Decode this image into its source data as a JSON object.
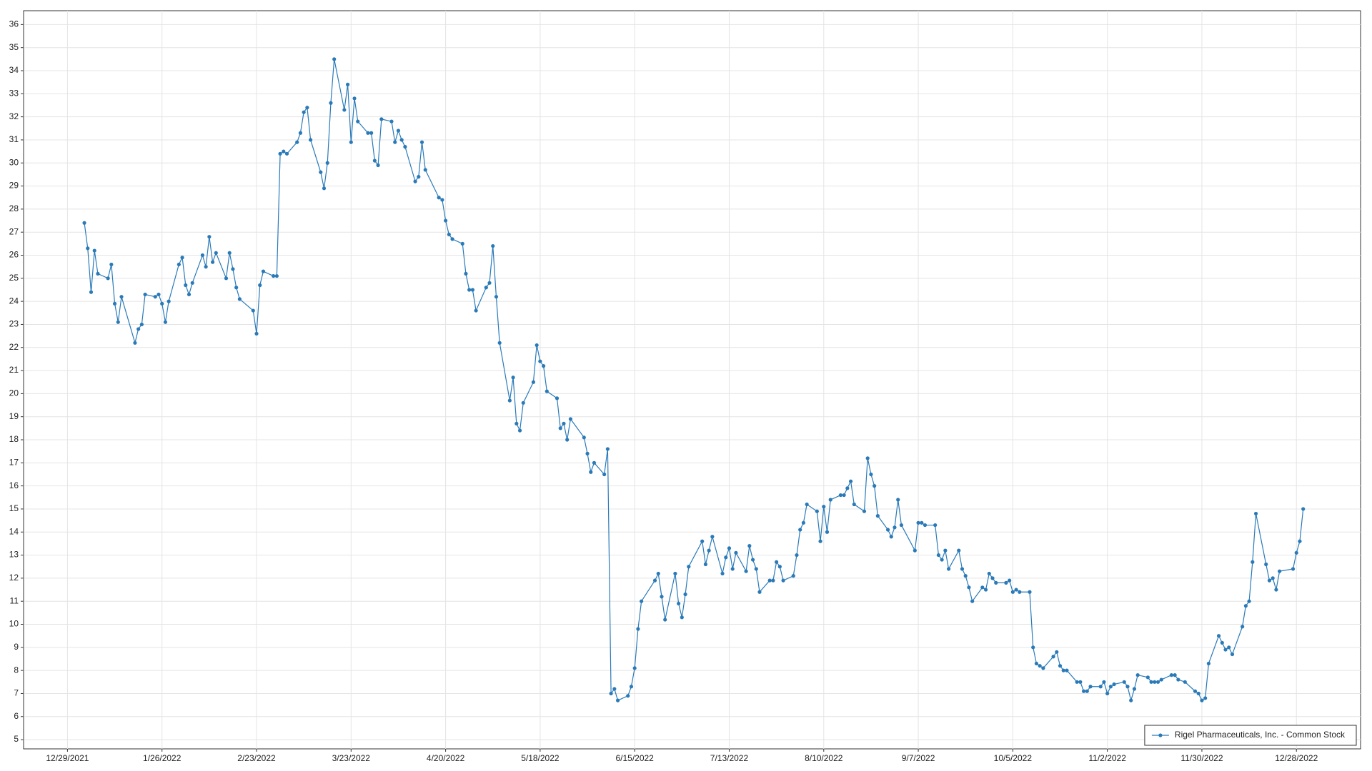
{
  "chart_data": {
    "type": "line",
    "grid": true,
    "legend": "lower right",
    "xlim": [
      "12/16/2021",
      "1/16/2023"
    ],
    "xticks": [
      "12/29/2021",
      "1/26/2022",
      "2/23/2022",
      "3/23/2022",
      "4/20/2022",
      "5/18/2022",
      "6/15/2022",
      "7/13/2022",
      "8/10/2022",
      "9/7/2022",
      "10/5/2022",
      "11/2/2022",
      "11/30/2022",
      "12/28/2022"
    ],
    "ylim": [
      4.6,
      36.6
    ],
    "yticks": [
      5,
      6,
      7,
      8,
      9,
      10,
      11,
      12,
      13,
      14,
      15,
      16,
      17,
      18,
      19,
      20,
      21,
      22,
      23,
      24,
      25,
      26,
      27,
      28,
      29,
      30,
      31,
      32,
      33,
      34,
      35,
      36
    ],
    "x": [
      "1/3/2022",
      "1/4/2022",
      "1/5/2022",
      "1/6/2022",
      "1/7/2022",
      "1/10/2022",
      "1/11/2022",
      "1/12/2022",
      "1/13/2022",
      "1/14/2022",
      "1/18/2022",
      "1/19/2022",
      "1/20/2022",
      "1/21/2022",
      "1/24/2022",
      "1/25/2022",
      "1/26/2022",
      "1/27/2022",
      "1/28/2022",
      "1/31/2022",
      "2/1/2022",
      "2/2/2022",
      "2/3/2022",
      "2/4/2022",
      "2/7/2022",
      "2/8/2022",
      "2/9/2022",
      "2/10/2022",
      "2/11/2022",
      "2/14/2022",
      "2/15/2022",
      "2/16/2022",
      "2/17/2022",
      "2/18/2022",
      "2/22/2022",
      "2/23/2022",
      "2/24/2022",
      "2/25/2022",
      "2/28/2022",
      "3/1/2022",
      "3/2/2022",
      "3/3/2022",
      "3/4/2022",
      "3/7/2022",
      "3/8/2022",
      "3/9/2022",
      "3/10/2022",
      "3/11/2022",
      "3/14/2022",
      "3/15/2022",
      "3/16/2022",
      "3/17/2022",
      "3/18/2022",
      "3/21/2022",
      "3/22/2022",
      "3/23/2022",
      "3/24/2022",
      "3/25/2022",
      "3/28/2022",
      "3/29/2022",
      "3/30/2022",
      "3/31/2022",
      "4/1/2022",
      "4/4/2022",
      "4/5/2022",
      "4/6/2022",
      "4/7/2022",
      "4/8/2022",
      "4/11/2022",
      "4/12/2022",
      "4/13/2022",
      "4/14/2022",
      "4/18/2022",
      "4/19/2022",
      "4/20/2022",
      "4/21/2022",
      "4/22/2022",
      "4/25/2022",
      "4/26/2022",
      "4/27/2022",
      "4/28/2022",
      "4/29/2022",
      "5/2/2022",
      "5/3/2022",
      "5/4/2022",
      "5/5/2022",
      "5/6/2022",
      "5/9/2022",
      "5/10/2022",
      "5/11/2022",
      "5/12/2022",
      "5/13/2022",
      "5/16/2022",
      "5/17/2022",
      "5/18/2022",
      "5/19/2022",
      "5/20/2022",
      "5/23/2022",
      "5/24/2022",
      "5/25/2022",
      "5/26/2022",
      "5/27/2022",
      "5/31/2022",
      "6/1/2022",
      "6/2/2022",
      "6/3/2022",
      "6/6/2022",
      "6/7/2022",
      "6/8/2022",
      "6/9/2022",
      "6/10/2022",
      "6/13/2022",
      "6/14/2022",
      "6/15/2022",
      "6/16/2022",
      "6/17/2022",
      "6/21/2022",
      "6/22/2022",
      "6/23/2022",
      "6/24/2022",
      "6/27/2022",
      "6/28/2022",
      "6/29/2022",
      "6/30/2022",
      "7/1/2022",
      "7/5/2022",
      "7/6/2022",
      "7/7/2022",
      "7/8/2022",
      "7/11/2022",
      "7/12/2022",
      "7/13/2022",
      "7/14/2022",
      "7/15/2022",
      "7/18/2022",
      "7/19/2022",
      "7/20/2022",
      "7/21/2022",
      "7/22/2022",
      "7/25/2022",
      "7/26/2022",
      "7/27/2022",
      "7/28/2022",
      "7/29/2022",
      "8/1/2022",
      "8/2/2022",
      "8/3/2022",
      "8/4/2022",
      "8/5/2022",
      "8/8/2022",
      "8/9/2022",
      "8/10/2022",
      "8/11/2022",
      "8/12/2022",
      "8/15/2022",
      "8/16/2022",
      "8/17/2022",
      "8/18/2022",
      "8/19/2022",
      "8/22/2022",
      "8/23/2022",
      "8/24/2022",
      "8/25/2022",
      "8/26/2022",
      "8/29/2022",
      "8/30/2022",
      "8/31/2022",
      "9/1/2022",
      "9/2/2022",
      "9/6/2022",
      "9/7/2022",
      "9/8/2022",
      "9/9/2022",
      "9/12/2022",
      "9/13/2022",
      "9/14/2022",
      "9/15/2022",
      "9/16/2022",
      "9/19/2022",
      "9/20/2022",
      "9/21/2022",
      "9/22/2022",
      "9/23/2022",
      "9/26/2022",
      "9/27/2022",
      "9/28/2022",
      "9/29/2022",
      "9/30/2022",
      "10/3/2022",
      "10/4/2022",
      "10/5/2022",
      "10/6/2022",
      "10/7/2022",
      "10/10/2022",
      "10/11/2022",
      "10/12/2022",
      "10/13/2022",
      "10/14/2022",
      "10/17/2022",
      "10/18/2022",
      "10/19/2022",
      "10/20/2022",
      "10/21/2022",
      "10/24/2022",
      "10/25/2022",
      "10/26/2022",
      "10/27/2022",
      "10/28/2022",
      "10/31/2022",
      "11/1/2022",
      "11/2/2022",
      "11/3/2022",
      "11/4/2022",
      "11/7/2022",
      "11/8/2022",
      "11/9/2022",
      "11/10/2022",
      "11/11/2022",
      "11/14/2022",
      "11/15/2022",
      "11/16/2022",
      "11/17/2022",
      "11/18/2022",
      "11/21/2022",
      "11/22/2022",
      "11/23/2022",
      "11/25/2022",
      "11/28/2022",
      "11/29/2022",
      "11/30/2022",
      "12/1/2022",
      "12/2/2022",
      "12/5/2022",
      "12/6/2022",
      "12/7/2022",
      "12/8/2022",
      "12/9/2022",
      "12/12/2022",
      "12/13/2022",
      "12/14/2022",
      "12/15/2022",
      "12/16/2022",
      "12/19/2022",
      "12/20/2022",
      "12/21/2022",
      "12/22/2022",
      "12/23/2022",
      "12/27/2022",
      "12/28/2022",
      "12/29/2022",
      "12/30/2022"
    ],
    "series": [
      {
        "name": "Rigel Pharmaceuticals, Inc. - Common Stock",
        "color": "#2a7ab8",
        "values": [
          27.4,
          26.3,
          24.4,
          26.2,
          25.2,
          25.0,
          25.6,
          23.9,
          23.1,
          24.2,
          22.2,
          22.8,
          23.0,
          24.3,
          24.2,
          24.3,
          23.9,
          23.1,
          24.0,
          25.6,
          25.9,
          24.7,
          24.3,
          24.8,
          26.0,
          25.5,
          26.8,
          25.7,
          26.1,
          25.0,
          26.1,
          25.4,
          24.6,
          24.1,
          23.6,
          22.6,
          24.7,
          25.3,
          25.1,
          25.1,
          30.4,
          30.5,
          30.4,
          30.9,
          31.3,
          32.2,
          32.4,
          31.0,
          29.6,
          28.9,
          30.0,
          32.6,
          34.5,
          32.3,
          33.4,
          30.9,
          32.8,
          31.8,
          31.3,
          31.3,
          30.1,
          29.9,
          31.9,
          31.8,
          30.9,
          31.4,
          31.0,
          30.7,
          29.2,
          29.4,
          30.9,
          29.7,
          28.5,
          28.4,
          27.5,
          26.9,
          26.7,
          26.5,
          25.2,
          24.5,
          24.5,
          23.6,
          24.6,
          24.8,
          26.4,
          24.2,
          22.2,
          19.7,
          20.7,
          18.7,
          18.4,
          19.6,
          20.5,
          22.1,
          21.4,
          21.2,
          20.1,
          19.8,
          18.5,
          18.7,
          18.0,
          18.9,
          18.1,
          17.4,
          16.6,
          17.0,
          16.5,
          17.6,
          7.0,
          7.2,
          6.7,
          6.9,
          7.3,
          8.1,
          9.8,
          11.0,
          11.9,
          12.2,
          11.2,
          10.2,
          12.2,
          10.9,
          10.3,
          11.3,
          12.5,
          13.6,
          12.6,
          13.2,
          13.8,
          12.2,
          12.9,
          13.3,
          12.4,
          13.1,
          12.3,
          13.4,
          12.8,
          12.4,
          11.4,
          11.9,
          11.9,
          12.7,
          12.5,
          11.9,
          12.1,
          13.0,
          14.1,
          14.4,
          15.2,
          14.9,
          13.6,
          15.1,
          14.0,
          15.4,
          15.6,
          15.6,
          15.9,
          16.2,
          15.2,
          14.9,
          17.2,
          16.5,
          16.0,
          14.7,
          14.1,
          13.8,
          14.2,
          15.4,
          14.3,
          13.2,
          14.4,
          14.4,
          14.3,
          14.3,
          13.0,
          12.8,
          13.2,
          12.4,
          13.2,
          12.4,
          12.1,
          11.6,
          11.0,
          11.6,
          11.5,
          12.2,
          12.0,
          11.8,
          11.8,
          11.9,
          11.4,
          11.5,
          11.4,
          11.4,
          9.0,
          8.3,
          8.2,
          8.1,
          8.6,
          8.8,
          8.2,
          8.0,
          8.0,
          7.5,
          7.5,
          7.1,
          7.1,
          7.3,
          7.3,
          7.5,
          7.0,
          7.3,
          7.4,
          7.5,
          7.3,
          6.7,
          7.2,
          7.8,
          7.7,
          7.5,
          7.5,
          7.5,
          7.6,
          7.8,
          7.8,
          7.6,
          7.5,
          7.1,
          7.0,
          6.7,
          6.8,
          8.3,
          9.5,
          9.2,
          8.9,
          9.0,
          8.7,
          9.9,
          10.8,
          11.0,
          12.7,
          14.8,
          12.6,
          11.9,
          12.0,
          11.5,
          12.3,
          12.4,
          13.1,
          13.6,
          15.0
        ]
      }
    ]
  }
}
